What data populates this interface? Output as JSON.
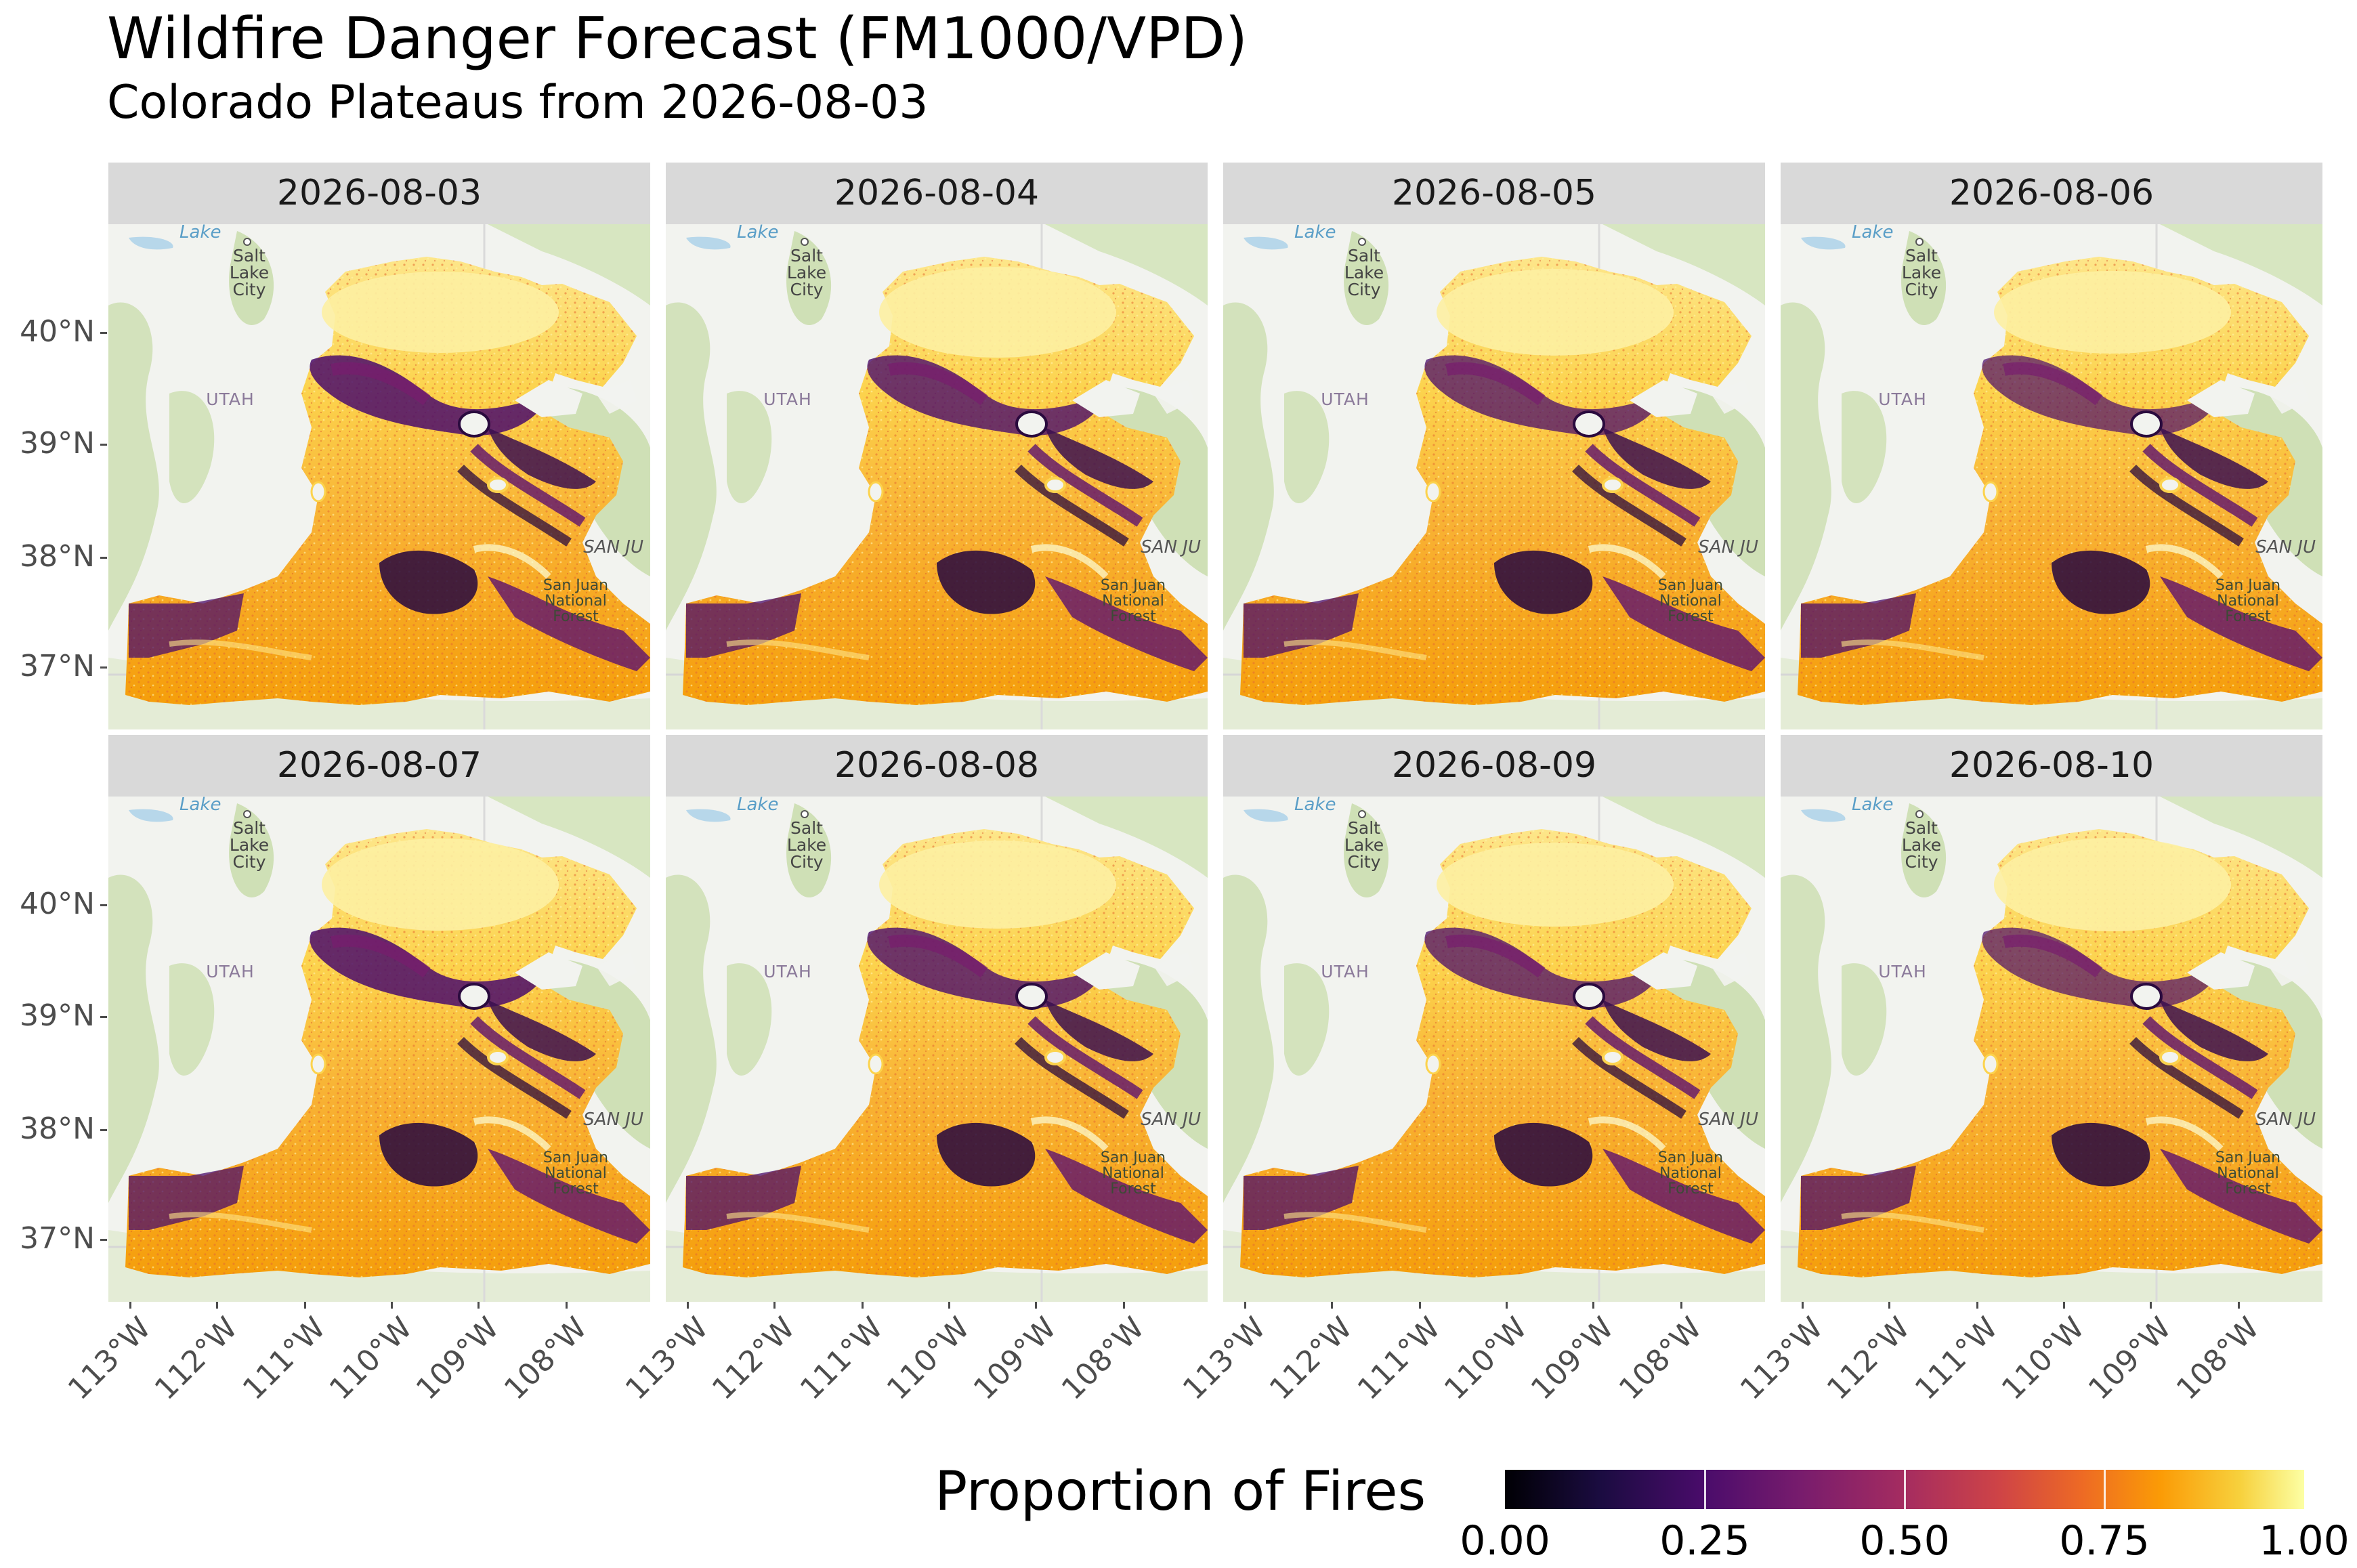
{
  "title": "Wildfire Danger Forecast (FM1000/VPD)",
  "subtitle": "Colorado Plateaus from 2026-08-03",
  "panels": [
    "2026-08-03",
    "2026-08-04",
    "2026-08-05",
    "2026-08-06",
    "2026-08-07",
    "2026-08-08",
    "2026-08-09",
    "2026-08-10"
  ],
  "y_axis_ticks": [
    "40°N",
    "39°N",
    "38°N",
    "37°N"
  ],
  "x_axis_ticks": [
    "113°W",
    "112°W",
    "111°W",
    "110°W",
    "109°W",
    "108°W"
  ],
  "basemap_labels": {
    "lake": "Lake",
    "city": [
      "Salt",
      "Lake",
      "City"
    ],
    "state": "UTAH",
    "san_juan": "SAN JU",
    "forest": [
      "San Juan",
      "National",
      "Forest"
    ]
  },
  "legend": {
    "title": "Proportion of Fires",
    "labels": [
      "0.00",
      "0.25",
      "0.50",
      "0.75",
      "1.00"
    ],
    "colormap": "inferno",
    "colors": [
      "#000004",
      "#4a0c6b",
      "#a52c60",
      "#ed6925",
      "#fcffa4"
    ]
  }
}
